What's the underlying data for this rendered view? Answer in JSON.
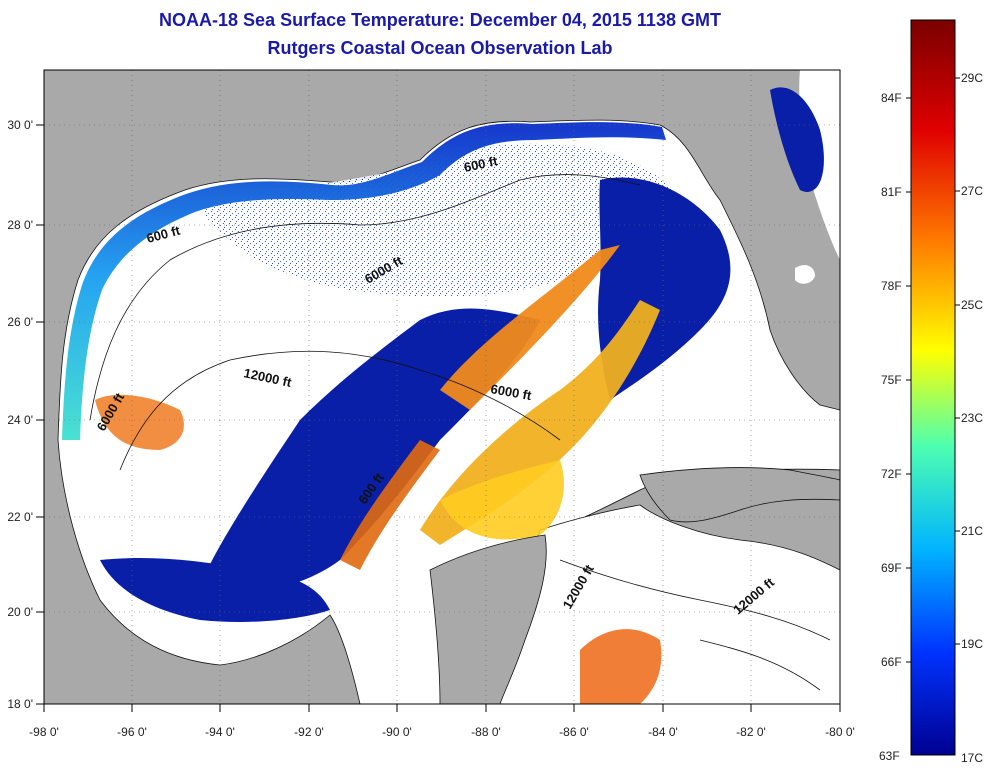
{
  "title": "NOAA-18 Sea Surface Temperature:  December 04, 2015 1138 GMT",
  "subtitle": "Rutgers Coastal Ocean Observation Lab",
  "map": {
    "lon_ticks": [
      "-98 0'",
      "-96 0'",
      "-94 0'",
      "-92 0'",
      "-90 0'",
      "-88 0'",
      "-86 0'",
      "-84 0'",
      "-82 0'",
      "-80 0'"
    ],
    "lat_ticks": [
      "30 0'",
      "28 0'",
      "26 0'",
      "24 0'",
      "22 0'",
      "20 0'",
      "18 0'"
    ],
    "extent": {
      "lon": [
        -98,
        -80
      ],
      "lat": [
        18,
        31
      ]
    },
    "contour_labels": [
      "600 ft",
      "600 ft",
      "6000 ft",
      "12000 ft",
      "6000 ft",
      "6000 ft",
      "600 ft",
      "12000 ft",
      "12000 ft"
    ]
  },
  "colorbar": {
    "f_labels": [
      "84F",
      "81F",
      "78F",
      "75F",
      "72F",
      "69F",
      "66F",
      "63F"
    ],
    "c_labels": [
      "29C",
      "27C",
      "25C",
      "23C",
      "21C",
      "19C",
      "17C"
    ],
    "colors": [
      "#7a0000",
      "#e00000",
      "#ff7a00",
      "#ffff00",
      "#4dffb0",
      "#00b4ff",
      "#0033ff",
      "#000090"
    ]
  },
  "colors": {
    "land": "#a9a9a9",
    "cloud": "#ffffff",
    "cold_water": "#0a1fa8",
    "warm_water": "#f08a1a",
    "title": "#1a1aa8"
  }
}
